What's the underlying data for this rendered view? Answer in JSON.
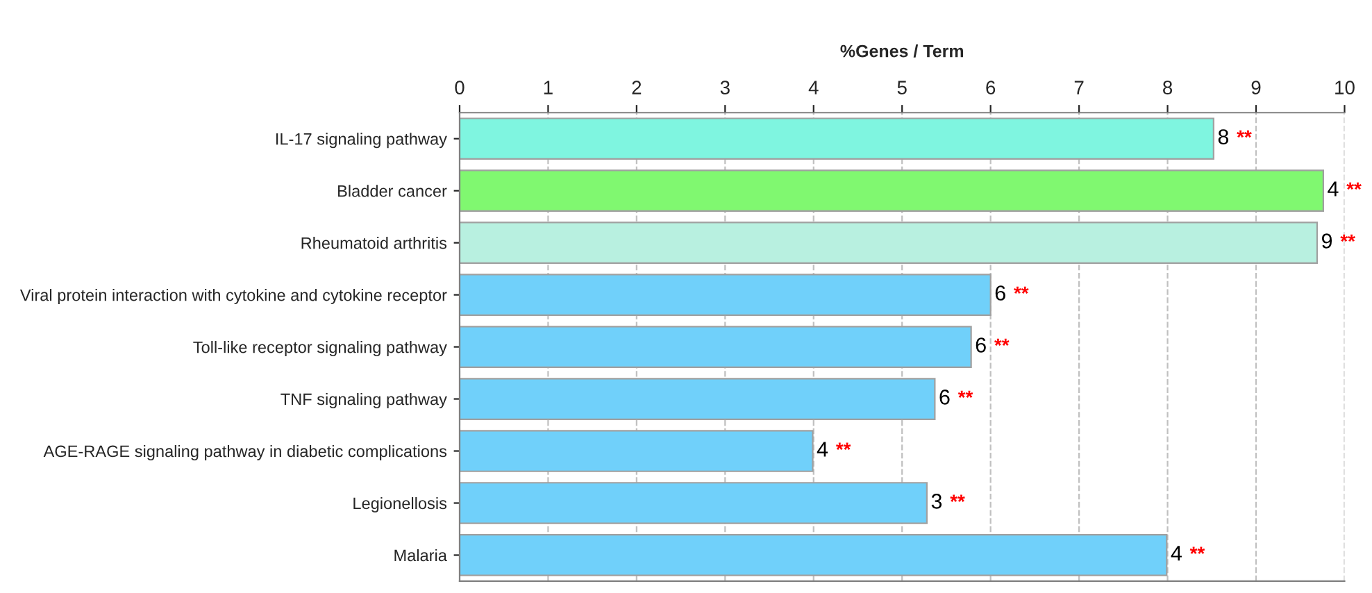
{
  "chart_data": {
    "type": "bar",
    "orientation": "horizontal",
    "xlabel": "%Genes / Term",
    "categories": [
      "IL-17 signaling pathway",
      "Bladder cancer",
      "Rheumatoid arthritis",
      "Viral protein interaction with cytokine and cytokine receptor",
      "Toll-like receptor signaling pathway",
      "TNF signaling pathway",
      "AGE-RAGE signaling pathway in diabetic complications",
      "Legionellosis",
      "Malaria"
    ],
    "values": [
      8.52,
      9.76,
      9.69,
      6.0,
      5.78,
      5.37,
      3.99,
      5.28,
      7.99
    ],
    "colors": [
      "#7ff5e0",
      "#80f870",
      "#b8f0e0",
      "#70d0fa",
      "#70d0fa",
      "#70d0fa",
      "#70d0fa",
      "#70d0fa",
      "#70d0fa"
    ],
    "annotations": [
      {
        "text": "8",
        "x": 8.52,
        "y": "IL-17 signaling pathway"
      },
      {
        "text": "4",
        "x": 9.76,
        "y": "Bladder cancer"
      },
      {
        "text": "9",
        "x": 9.69,
        "y": "Rheumatoid arthritis"
      },
      {
        "text": "6",
        "x": 6.0,
        "y": "Viral protein interaction with cytokine and cytokine receptor"
      },
      {
        "text": "6",
        "x": 5.78,
        "y": "Toll-like receptor signaling pathway"
      },
      {
        "text": "6",
        "x": 5.37,
        "y": "TNF signaling pathway"
      },
      {
        "text": "4",
        "x": 3.99,
        "y": "AGE-RAGE signaling pathway in diabetic complications"
      },
      {
        "text": "3",
        "x": 5.28,
        "y": "Legionellosis"
      },
      {
        "text": "4",
        "x": 7.99,
        "y": "Malaria"
      },
      {
        "text": "**",
        "x": 8.52,
        "y": "IL-17 signaling pathway"
      },
      {
        "text": "**",
        "x": 9.76,
        "y": "Bladder cancer"
      },
      {
        "text": "**",
        "x": 9.69,
        "y": "Rheumatoid arthritis"
      },
      {
        "text": "**",
        "x": 6.0,
        "y": "Viral protein interaction with cytokine and cytokine receptor"
      },
      {
        "text": "**",
        "x": 5.78,
        "y": "Toll-like receptor signaling pathway"
      },
      {
        "text": "**",
        "x": 5.37,
        "y": "TNF signaling pathway"
      },
      {
        "text": "**",
        "x": 3.99,
        "y": "AGE-RAGE signaling pathway in diabetic complications"
      },
      {
        "text": "**",
        "x": 5.28,
        "y": "Legionellosis"
      },
      {
        "text": "**",
        "x": 7.99,
        "y": "Malaria"
      }
    ],
    "xlim": [
      0,
      10
    ],
    "xticks": [
      0,
      1,
      2,
      3,
      4,
      5,
      6,
      7,
      8,
      9,
      10
    ],
    "grid": "x"
  }
}
